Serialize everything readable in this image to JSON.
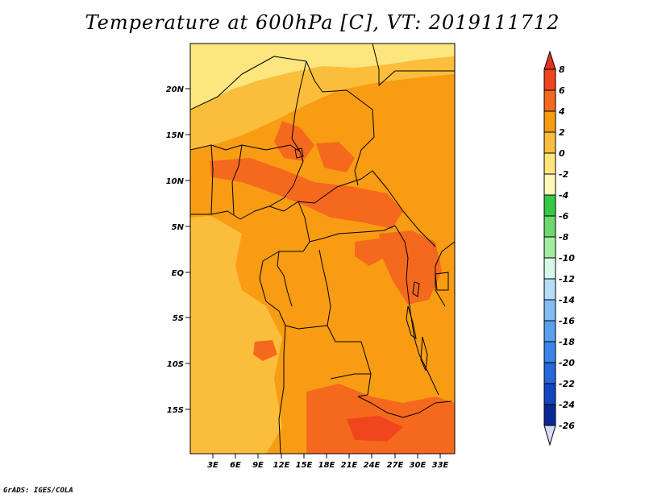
{
  "title": "Temperature at 600hPa [C], VT: 2019111712",
  "footer": "GrADS: IGES/COLA",
  "map": {
    "lat_labels": [
      "20N",
      "15N",
      "10N",
      "5N",
      "EQ",
      "5S",
      "10S",
      "15S"
    ],
    "lon_labels": [
      "3E",
      "6E",
      "9E",
      "12E",
      "15E",
      "18E",
      "21E",
      "24E",
      "27E",
      "30E",
      "33E"
    ]
  },
  "colorbar": {
    "labels": [
      "8",
      "6",
      "4",
      "2",
      "0",
      "-2",
      "-4",
      "-6",
      "-8",
      "-10",
      "-12",
      "-14",
      "-16",
      "-18",
      "-20",
      "-22",
      "-24",
      "-26"
    ],
    "colors": {
      "above_8": "#e0321e",
      "6_8": "#f0461e",
      "4_6": "#f5691e",
      "2_4": "#f89c14",
      "0_2": "#fabe3c",
      "m2_0": "#fde67e",
      "m4_m2": "#fff8b8",
      "m6_m4": "#38c848",
      "m8_m6": "#6ed86e",
      "m10_m8": "#a0eea0",
      "m12_m10": "#d8f8e8",
      "m14_m12": "#b6dcf8",
      "m16_m14": "#82bef5",
      "m18_m16": "#5aa0f0",
      "m20_m18": "#3a84ea",
      "m22_m20": "#2468dc",
      "m24_m22": "#1446c0",
      "m26_m24": "#0a2896",
      "below_m26": "#d8dcf8"
    }
  }
}
